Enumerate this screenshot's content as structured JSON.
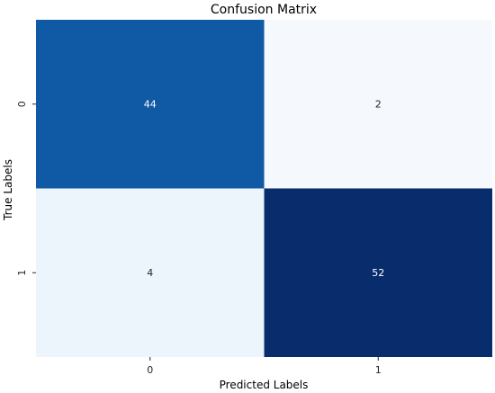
{
  "chart_data": {
    "type": "heatmap",
    "title": "Confusion Matrix",
    "xlabel": "Predicted Labels",
    "ylabel": "True Labels",
    "x_categories": [
      "0",
      "1"
    ],
    "y_categories": [
      "0",
      "1"
    ],
    "values": [
      [
        44,
        2
      ],
      [
        4,
        52
      ]
    ],
    "colormap": "Blues",
    "colorbar": false,
    "cell_colors": [
      [
        "#1059a4",
        "#f5f9fe"
      ],
      [
        "#ecf4fc",
        "#092d6c"
      ]
    ],
    "text_colors": [
      [
        "#ffffff",
        "#262626"
      ],
      [
        "#262626",
        "#ffffff"
      ]
    ]
  }
}
